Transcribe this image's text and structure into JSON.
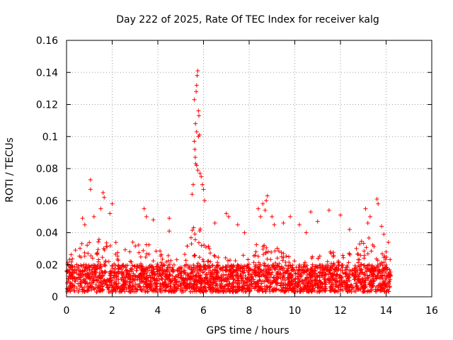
{
  "chart_data": {
    "type": "scatter",
    "title": "Day 222 of 2025, Rate Of TEC Index for receiver kalg",
    "xlabel": "GPS time / hours",
    "ylabel": "ROTI / TECUs",
    "xlim": [
      0,
      16
    ],
    "ylim": [
      0,
      0.16
    ],
    "xticks": [
      "0",
      "2",
      "4",
      "6",
      "8",
      "10",
      "12",
      "14",
      "16"
    ],
    "yticks": [
      "0",
      "0.02",
      "0.04",
      "0.06",
      "0.08",
      "0.1",
      "0.12",
      "0.14",
      "0.16"
    ],
    "grid": true,
    "marker": "+",
    "color": "#ff0000",
    "x_range_of_data": [
      0,
      14.2
    ],
    "baseline_band": [
      0.003,
      0.02
    ],
    "series": [
      {
        "name": "ROTI",
        "points": [
          [
            5.75,
            0.141
          ],
          [
            5.72,
            0.138
          ],
          [
            5.7,
            0.132
          ],
          [
            5.68,
            0.128
          ],
          [
            5.6,
            0.123
          ],
          [
            5.78,
            0.116
          ],
          [
            5.8,
            0.113
          ],
          [
            5.65,
            0.108
          ],
          [
            5.7,
            0.103
          ],
          [
            5.82,
            0.101
          ],
          [
            5.78,
            0.1
          ],
          [
            5.6,
            0.097
          ],
          [
            5.62,
            0.092
          ],
          [
            5.64,
            0.087
          ],
          [
            5.66,
            0.083
          ],
          [
            5.7,
            0.082
          ],
          [
            5.75,
            0.079
          ],
          [
            5.85,
            0.077
          ],
          [
            5.9,
            0.075
          ],
          [
            5.55,
            0.07
          ],
          [
            5.95,
            0.07
          ],
          [
            6.0,
            0.067
          ],
          [
            5.5,
            0.064
          ],
          [
            6.05,
            0.06
          ],
          [
            1.05,
            0.073
          ],
          [
            1.05,
            0.067
          ],
          [
            1.6,
            0.065
          ],
          [
            1.65,
            0.062
          ],
          [
            1.5,
            0.055
          ],
          [
            2.0,
            0.058
          ],
          [
            1.9,
            0.052
          ],
          [
            0.8,
            0.045
          ],
          [
            0.7,
            0.049
          ],
          [
            1.2,
            0.05
          ],
          [
            8.8,
            0.063
          ],
          [
            8.75,
            0.06
          ],
          [
            8.6,
            0.058
          ],
          [
            8.7,
            0.054
          ],
          [
            8.5,
            0.05
          ],
          [
            8.4,
            0.055
          ],
          [
            9.0,
            0.05
          ],
          [
            9.1,
            0.045
          ],
          [
            13.6,
            0.061
          ],
          [
            13.65,
            0.058
          ],
          [
            13.1,
            0.055
          ],
          [
            13.3,
            0.05
          ],
          [
            13.2,
            0.046
          ],
          [
            11.5,
            0.054
          ],
          [
            10.7,
            0.053
          ],
          [
            12.0,
            0.051
          ],
          [
            11.0,
            0.047
          ],
          [
            12.4,
            0.042
          ],
          [
            3.4,
            0.055
          ],
          [
            3.5,
            0.05
          ],
          [
            3.8,
            0.048
          ],
          [
            4.5,
            0.049
          ],
          [
            4.5,
            0.041
          ],
          [
            7.0,
            0.052
          ],
          [
            7.1,
            0.05
          ],
          [
            6.5,
            0.046
          ],
          [
            7.5,
            0.045
          ],
          [
            7.8,
            0.04
          ],
          [
            9.5,
            0.046
          ],
          [
            9.8,
            0.05
          ],
          [
            10.2,
            0.045
          ],
          [
            10.5,
            0.04
          ],
          [
            13.8,
            0.044
          ],
          [
            13.9,
            0.039
          ],
          [
            14.1,
            0.034
          ],
          [
            14.0,
            0.028
          ]
        ]
      }
    ]
  }
}
